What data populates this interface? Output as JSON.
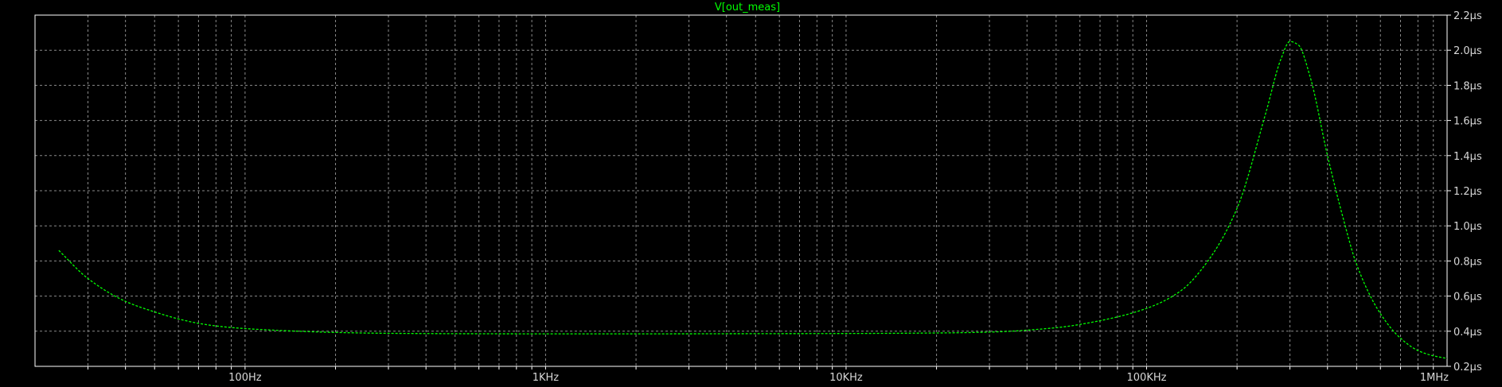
{
  "chart_data": {
    "type": "line",
    "title": "V[out_meas]",
    "xlabel": "",
    "ylabel": "",
    "x_scale": "log",
    "xlim": [
      20,
      1000000
    ],
    "ylim": [
      0.2,
      2.2
    ],
    "grid": true,
    "x_ticks": [
      {
        "value": 100,
        "label": "100Hz"
      },
      {
        "value": 1000,
        "label": "1KHz"
      },
      {
        "value": 10000,
        "label": "10KHz"
      },
      {
        "value": 100000,
        "label": "100KHz"
      },
      {
        "value": 1000000,
        "label": "1MHz"
      }
    ],
    "y_ticks": [
      {
        "value": 0.2,
        "label": "0.2µs"
      },
      {
        "value": 0.4,
        "label": "0.4µs"
      },
      {
        "value": 0.6,
        "label": "0.6µs"
      },
      {
        "value": 0.8,
        "label": "0.8µs"
      },
      {
        "value": 1.0,
        "label": "1.0µs"
      },
      {
        "value": 1.2,
        "label": "1.2µs"
      },
      {
        "value": 1.4,
        "label": "1.4µs"
      },
      {
        "value": 1.6,
        "label": "1.6µs"
      },
      {
        "value": 1.8,
        "label": "1.8µs"
      },
      {
        "value": 2.0,
        "label": "2.0µs"
      },
      {
        "value": 2.2,
        "label": "2.2µs"
      }
    ],
    "series": [
      {
        "color": "#00ff00",
        "x": [
          24,
          30,
          40,
          50,
          60,
          70,
          80,
          100,
          150,
          200,
          300,
          500,
          1000,
          2000,
          5000,
          10000,
          20000,
          30000,
          50000,
          70000,
          100000,
          130000,
          160000,
          200000,
          250000,
          280000,
          300000,
          320000,
          350000,
          400000,
          450000,
          500000,
          600000,
          700000,
          800000,
          900000,
          1000000
        ],
        "y": [
          0.86,
          0.7,
          0.57,
          0.51,
          0.47,
          0.445,
          0.43,
          0.415,
          0.4,
          0.393,
          0.388,
          0.386,
          0.385,
          0.385,
          0.386,
          0.387,
          0.39,
          0.395,
          0.42,
          0.46,
          0.53,
          0.63,
          0.8,
          1.1,
          1.65,
          1.95,
          2.05,
          2.03,
          1.85,
          1.4,
          1.05,
          0.78,
          0.5,
          0.36,
          0.29,
          0.26,
          0.245
        ]
      }
    ]
  }
}
